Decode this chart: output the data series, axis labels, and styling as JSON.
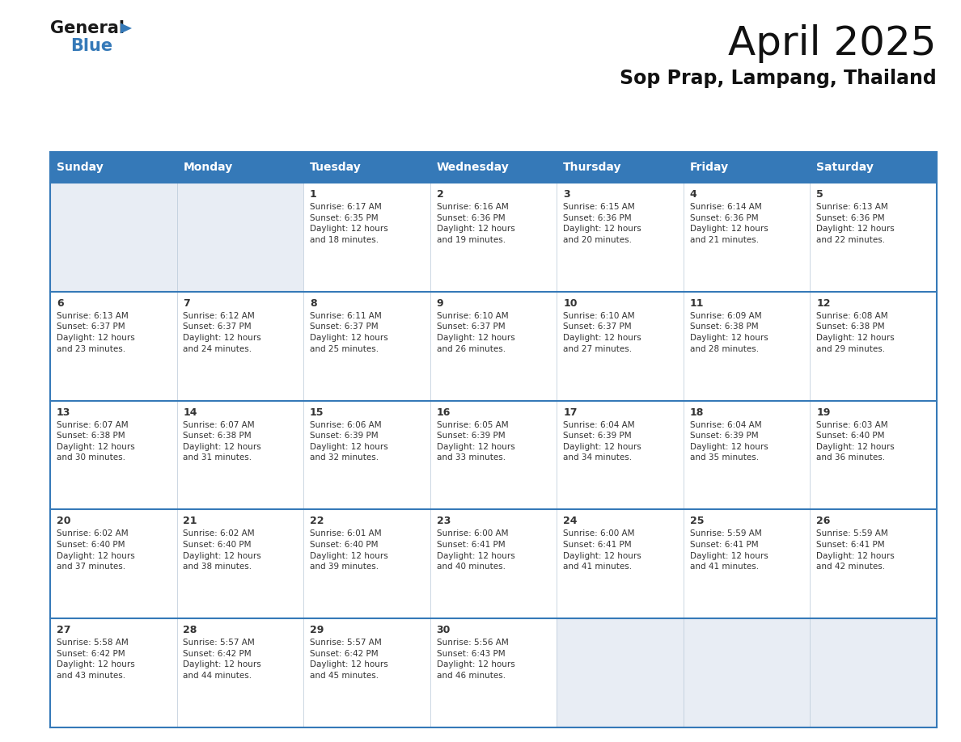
{
  "title": "April 2025",
  "subtitle": "Sop Prap, Lampang, Thailand",
  "header_color": "#3579B8",
  "header_text_color": "#FFFFFF",
  "cell_bg_white": "#FFFFFF",
  "cell_bg_gray": "#E8EDF4",
  "border_color": "#3579B8",
  "inner_line_color": "#B8C8D8",
  "text_color": "#333333",
  "days_of_week": [
    "Sunday",
    "Monday",
    "Tuesday",
    "Wednesday",
    "Thursday",
    "Friday",
    "Saturday"
  ],
  "calendar_data": [
    [
      "",
      "",
      "1\nSunrise: 6:17 AM\nSunset: 6:35 PM\nDaylight: 12 hours\nand 18 minutes.",
      "2\nSunrise: 6:16 AM\nSunset: 6:36 PM\nDaylight: 12 hours\nand 19 minutes.",
      "3\nSunrise: 6:15 AM\nSunset: 6:36 PM\nDaylight: 12 hours\nand 20 minutes.",
      "4\nSunrise: 6:14 AM\nSunset: 6:36 PM\nDaylight: 12 hours\nand 21 minutes.",
      "5\nSunrise: 6:13 AM\nSunset: 6:36 PM\nDaylight: 12 hours\nand 22 minutes."
    ],
    [
      "6\nSunrise: 6:13 AM\nSunset: 6:37 PM\nDaylight: 12 hours\nand 23 minutes.",
      "7\nSunrise: 6:12 AM\nSunset: 6:37 PM\nDaylight: 12 hours\nand 24 minutes.",
      "8\nSunrise: 6:11 AM\nSunset: 6:37 PM\nDaylight: 12 hours\nand 25 minutes.",
      "9\nSunrise: 6:10 AM\nSunset: 6:37 PM\nDaylight: 12 hours\nand 26 minutes.",
      "10\nSunrise: 6:10 AM\nSunset: 6:37 PM\nDaylight: 12 hours\nand 27 minutes.",
      "11\nSunrise: 6:09 AM\nSunset: 6:38 PM\nDaylight: 12 hours\nand 28 minutes.",
      "12\nSunrise: 6:08 AM\nSunset: 6:38 PM\nDaylight: 12 hours\nand 29 minutes."
    ],
    [
      "13\nSunrise: 6:07 AM\nSunset: 6:38 PM\nDaylight: 12 hours\nand 30 minutes.",
      "14\nSunrise: 6:07 AM\nSunset: 6:38 PM\nDaylight: 12 hours\nand 31 minutes.",
      "15\nSunrise: 6:06 AM\nSunset: 6:39 PM\nDaylight: 12 hours\nand 32 minutes.",
      "16\nSunrise: 6:05 AM\nSunset: 6:39 PM\nDaylight: 12 hours\nand 33 minutes.",
      "17\nSunrise: 6:04 AM\nSunset: 6:39 PM\nDaylight: 12 hours\nand 34 minutes.",
      "18\nSunrise: 6:04 AM\nSunset: 6:39 PM\nDaylight: 12 hours\nand 35 minutes.",
      "19\nSunrise: 6:03 AM\nSunset: 6:40 PM\nDaylight: 12 hours\nand 36 minutes."
    ],
    [
      "20\nSunrise: 6:02 AM\nSunset: 6:40 PM\nDaylight: 12 hours\nand 37 minutes.",
      "21\nSunrise: 6:02 AM\nSunset: 6:40 PM\nDaylight: 12 hours\nand 38 minutes.",
      "22\nSunrise: 6:01 AM\nSunset: 6:40 PM\nDaylight: 12 hours\nand 39 minutes.",
      "23\nSunrise: 6:00 AM\nSunset: 6:41 PM\nDaylight: 12 hours\nand 40 minutes.",
      "24\nSunrise: 6:00 AM\nSunset: 6:41 PM\nDaylight: 12 hours\nand 41 minutes.",
      "25\nSunrise: 5:59 AM\nSunset: 6:41 PM\nDaylight: 12 hours\nand 41 minutes.",
      "26\nSunrise: 5:59 AM\nSunset: 6:41 PM\nDaylight: 12 hours\nand 42 minutes."
    ],
    [
      "27\nSunrise: 5:58 AM\nSunset: 6:42 PM\nDaylight: 12 hours\nand 43 minutes.",
      "28\nSunrise: 5:57 AM\nSunset: 6:42 PM\nDaylight: 12 hours\nand 44 minutes.",
      "29\nSunrise: 5:57 AM\nSunset: 6:42 PM\nDaylight: 12 hours\nand 45 minutes.",
      "30\nSunrise: 5:56 AM\nSunset: 6:43 PM\nDaylight: 12 hours\nand 46 minutes.",
      "",
      "",
      ""
    ]
  ],
  "logo_text1": "General",
  "logo_text2": "Blue",
  "logo_color1": "#1a1a1a",
  "logo_color2": "#3579B8",
  "logo_triangle_color": "#3579B8",
  "title_fontsize": 36,
  "subtitle_fontsize": 17,
  "header_fontsize": 10,
  "daynum_fontsize": 9,
  "info_fontsize": 7.5
}
